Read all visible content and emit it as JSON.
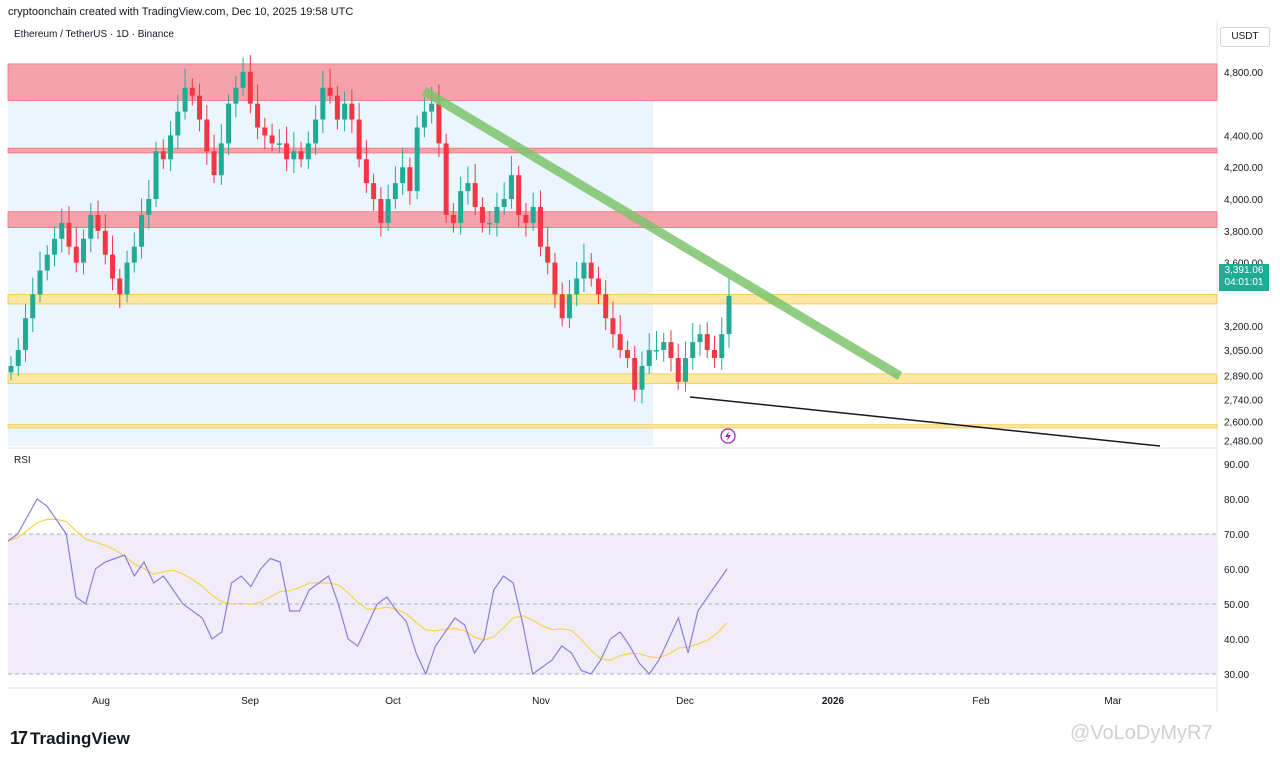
{
  "header": {
    "caption": "cryptoonchain created with TradingView.com, Dec 10, 2025 19:58 UTC"
  },
  "symbol": {
    "label": "Ethereum / TetherUS · 1D · Binance"
  },
  "currency_button": "USDT",
  "rsi_label": "RSI",
  "last_price": {
    "value": "3,391.06",
    "countdown": "04:01:01"
  },
  "brand": {
    "name": "TradingView"
  },
  "watermark": "@VoLoDyMyR7",
  "colors": {
    "up": "#22ab94",
    "down": "#f23645",
    "resistance": "#f5a2aa",
    "support": "#fde8a3",
    "trendline": "#7cc36b",
    "rsi": "#8b7fd8",
    "rsi_ma": "#f5d547"
  },
  "chart_data": {
    "type": "candlestick",
    "price_axis": [
      "4,800.00",
      "4,400.00",
      "4,200.00",
      "4,000.00",
      "3,800.00",
      "3,600.00",
      "3,200.00",
      "3,050.00",
      "2,890.00",
      "2,740.00",
      "2,600.00",
      "2,480.00"
    ],
    "rsi_axis": [
      "90.00",
      "80.00",
      "70.00",
      "60.00",
      "50.00",
      "40.00",
      "30.00"
    ],
    "time_axis": [
      "Aug",
      "Sep",
      "Oct",
      "Nov",
      "Dec",
      "2026",
      "Feb",
      "Mar"
    ],
    "ylim": [
      2440,
      4950
    ],
    "zones": [
      {
        "kind": "resistance",
        "low": 4620,
        "high": 4850
      },
      {
        "kind": "resistance",
        "low": 4290,
        "high": 4320
      },
      {
        "kind": "resistance",
        "low": 3820,
        "high": 3920
      },
      {
        "kind": "support",
        "low": 3340,
        "high": 3400
      },
      {
        "kind": "support",
        "low": 2840,
        "high": 2900
      },
      {
        "kind": "support",
        "low": 2560,
        "high": 2580
      }
    ],
    "closes": [
      2950,
      3050,
      3250,
      3400,
      3550,
      3650,
      3750,
      3850,
      3700,
      3600,
      3750,
      3900,
      3800,
      3650,
      3500,
      3400,
      3600,
      3700,
      3900,
      4000,
      4300,
      4250,
      4400,
      4550,
      4700,
      4650,
      4500,
      4300,
      4150,
      4350,
      4600,
      4700,
      4800,
      4600,
      4450,
      4400,
      4350,
      4350,
      4250,
      4300,
      4250,
      4350,
      4500,
      4700,
      4650,
      4500,
      4600,
      4500,
      4250,
      4100,
      4000,
      3850,
      4000,
      4100,
      4200,
      4050,
      4450,
      4550,
      4600,
      4350,
      3900,
      3850,
      4050,
      4100,
      3950,
      3850,
      3850,
      3950,
      4000,
      4150,
      3900,
      3850,
      3950,
      3700,
      3600,
      3400,
      3250,
      3400,
      3500,
      3600,
      3500,
      3400,
      3250,
      3150,
      3050,
      3000,
      2800,
      2950,
      3050,
      3050,
      3100,
      3000,
      2850,
      3000,
      3100,
      3150,
      3050,
      3000,
      3150,
      3391.06
    ],
    "rsi": [
      68,
      70,
      75,
      80,
      78,
      74,
      70,
      52,
      50,
      60,
      62,
      63,
      64,
      58,
      62,
      56,
      58,
      54,
      50,
      48,
      46,
      40,
      42,
      56,
      58,
      55,
      60,
      63,
      62,
      48,
      48,
      54,
      56,
      58,
      50,
      40,
      38,
      44,
      50,
      52,
      48,
      45,
      36,
      30,
      38,
      42,
      46,
      44,
      36,
      40,
      54,
      58,
      56,
      44,
      30,
      32,
      34,
      38,
      36,
      31,
      30,
      34,
      40,
      42,
      38,
      33,
      30,
      34,
      40,
      46,
      36,
      48,
      52,
      56,
      60
    ]
  }
}
